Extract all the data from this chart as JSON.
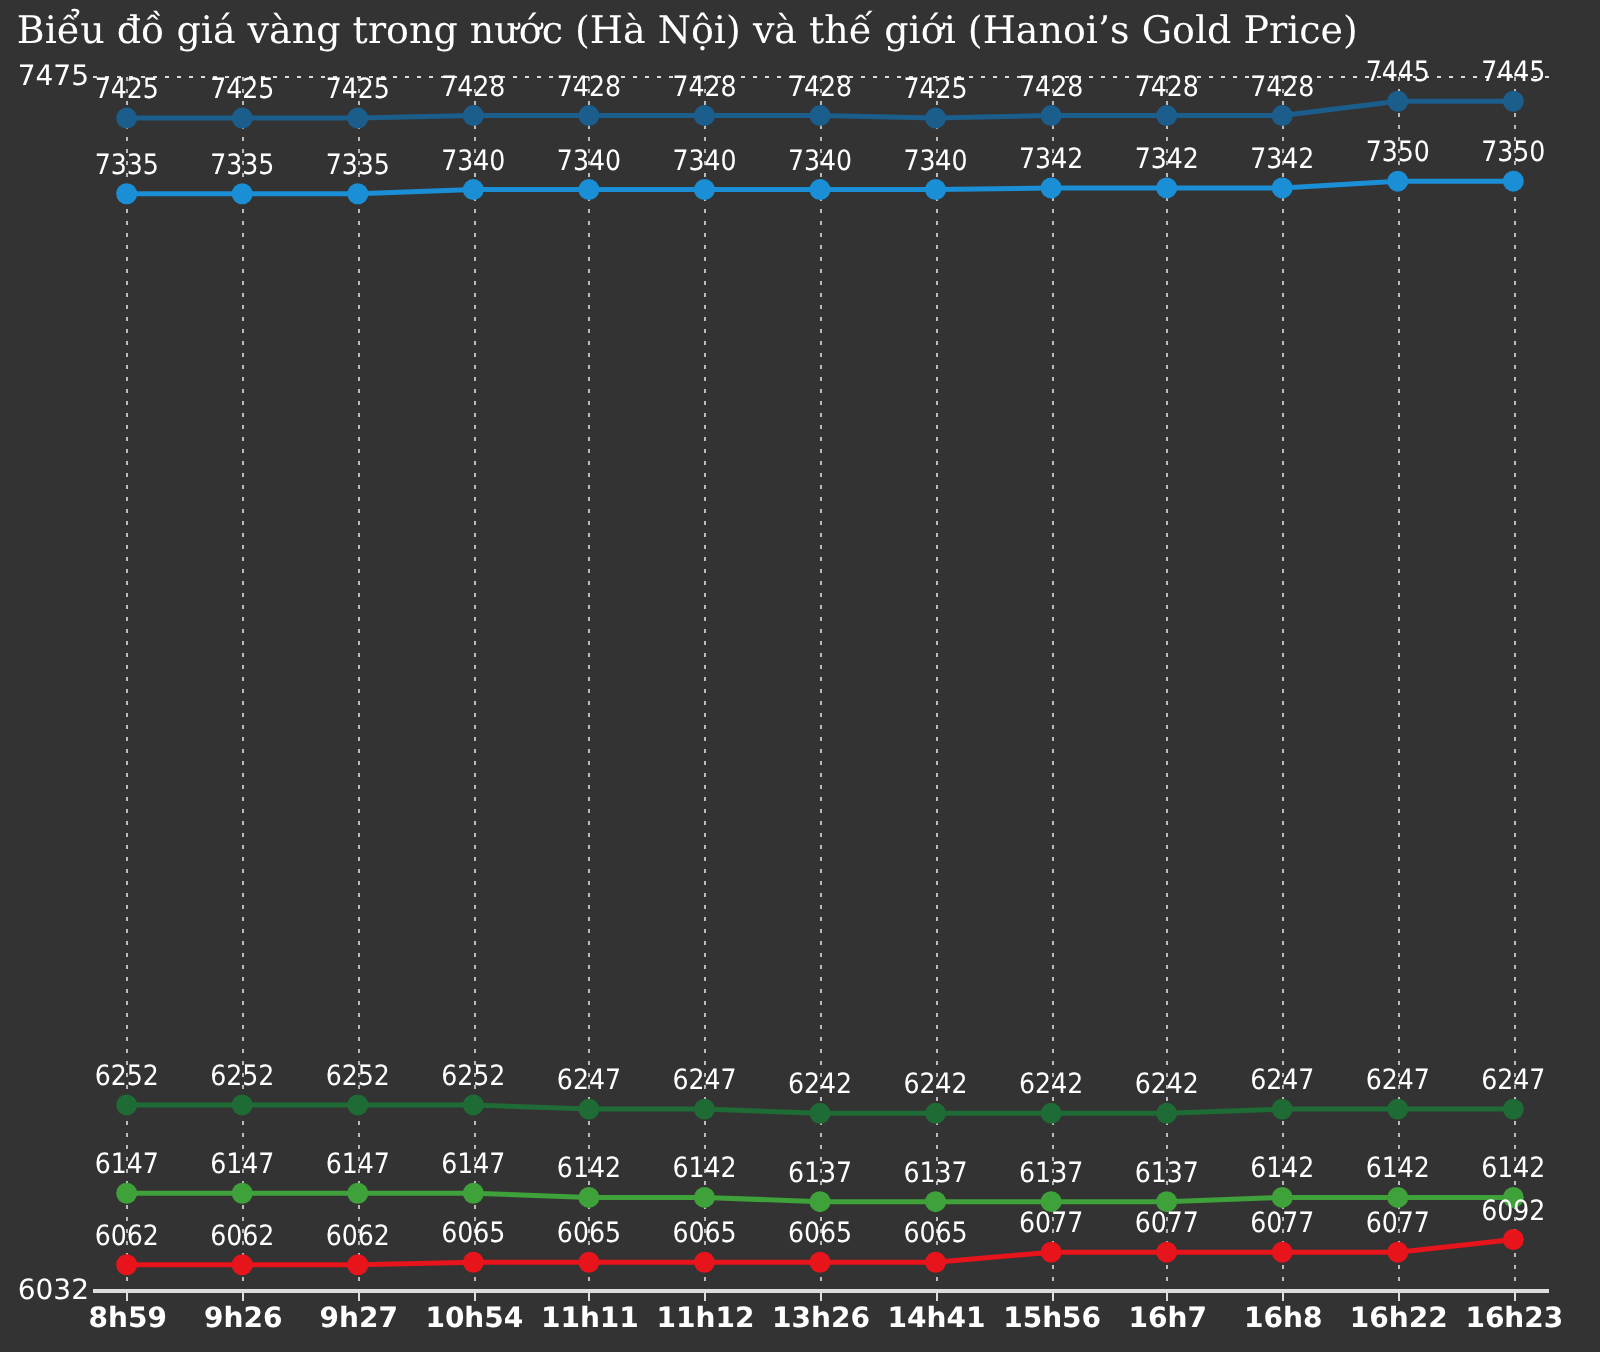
{
  "chart_data": {
    "type": "line",
    "title": "Biểu đồ giá vàng trong nước (Hà Nội) và thế giới (Hanoi’s Gold Price)",
    "categories": [
      "8h59",
      "9h26",
      "9h27",
      "10h54",
      "11h11",
      "11h12",
      "13h26",
      "14h41",
      "15h56",
      "16h7",
      "16h8",
      "16h22",
      "16h23"
    ],
    "series": [
      {
        "color": "#1b5e8c",
        "values": [
          7425,
          7425,
          7425,
          7428,
          7428,
          7428,
          7428,
          7425,
          7428,
          7428,
          7428,
          7445,
          7445
        ]
      },
      {
        "color": "#1a8fd6",
        "values": [
          7335,
          7335,
          7335,
          7340,
          7340,
          7340,
          7340,
          7340,
          7342,
          7342,
          7342,
          7350,
          7350
        ]
      },
      {
        "color": "#1e6b35",
        "values": [
          6252,
          6252,
          6252,
          6252,
          6247,
          6247,
          6242,
          6242,
          6242,
          6242,
          6247,
          6247,
          6247
        ]
      },
      {
        "color": "#3fa13a",
        "values": [
          6147,
          6147,
          6147,
          6147,
          6142,
          6142,
          6137,
          6137,
          6137,
          6137,
          6142,
          6142,
          6142
        ]
      },
      {
        "color": "#e8141c",
        "values": [
          6062,
          6062,
          6062,
          6065,
          6065,
          6065,
          6065,
          6065,
          6077,
          6077,
          6077,
          6077,
          6092
        ]
      }
    ],
    "ylim": [
      6032,
      7475
    ],
    "yticks": [
      6032,
      7475
    ],
    "grid": true,
    "marker": "circle",
    "line_style": "solid",
    "data_labels": true
  }
}
